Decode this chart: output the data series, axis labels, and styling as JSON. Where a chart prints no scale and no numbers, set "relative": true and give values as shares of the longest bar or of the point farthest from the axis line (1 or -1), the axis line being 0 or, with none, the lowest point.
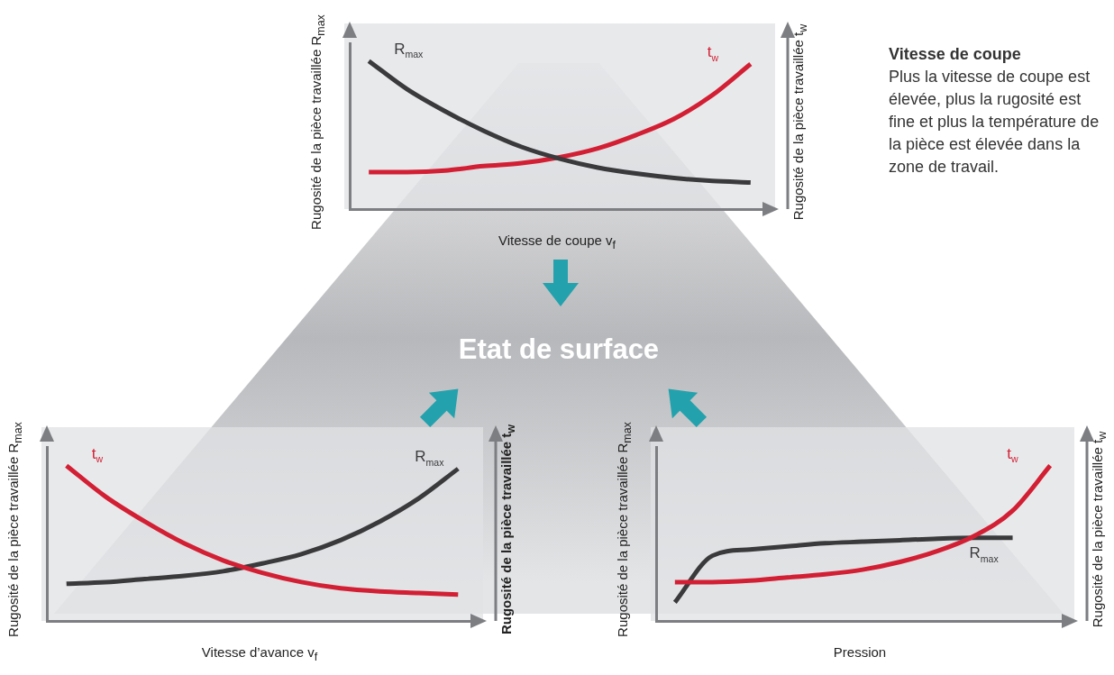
{
  "chart_data": [
    {
      "type": "line",
      "relative": true,
      "xlabel": "Vitesse de coupe v$_{f}$",
      "ylabel": "Rugosité de la pièce travaillée  R$_{max}$",
      "y2label": "Rugosité de la pièce travaillée  t$_{w}$",
      "tick_labels": false,
      "marker": "none",
      "categories": [
        null,
        null,
        null,
        null,
        null,
        null,
        null,
        null,
        null,
        null,
        null
      ],
      "series": [
        {
          "name": "R$_{max}$",
          "color": "#3a3a3c",
          "values": [
            1,
            0.81,
            0.66,
            0.53,
            0.42,
            0.34,
            0.28,
            0.24,
            0.21,
            0.19,
            0.18
          ]
        },
        {
          "name": "t$_{w}$",
          "color": "#d31f34",
          "values": [
            0.25,
            0.25,
            0.26,
            0.29,
            0.31,
            0.35,
            0.41,
            0.5,
            0.61,
            0.77,
            0.98
          ]
        }
      ]
    },
    {
      "type": "line",
      "relative": true,
      "xlabel": "Vitesse d’avance v$_{f}$",
      "ylabel": "Rugosité de la pièce travaillée  R$_{max}$",
      "y2label": "Rugosité de la pièce travaillée  t$_{w}$",
      "tick_labels": false,
      "marker": "none",
      "categories": [
        null,
        null,
        null,
        null,
        null,
        null,
        null,
        null,
        null,
        null,
        null
      ],
      "series": [
        {
          "name": "t$_{w}$",
          "color": "#d31f34",
          "values": [
            1,
            0.8,
            0.64,
            0.5,
            0.39,
            0.31,
            0.25,
            0.21,
            0.19,
            0.18,
            0.17
          ]
        },
        {
          "name": "R$_{max}$",
          "color": "#3a3a3c",
          "values": [
            0.24,
            0.25,
            0.27,
            0.29,
            0.32,
            0.37,
            0.43,
            0.52,
            0.64,
            0.79,
            0.98
          ]
        }
      ]
    },
    {
      "type": "line",
      "relative": true,
      "xlabel": "Pression",
      "ylabel": "Rugosité de la pièce travaillée  R$_{max}$",
      "y2label": "Rugosité de la pièce travaillée  t$_{w}$",
      "tick_labels": false,
      "marker": "none",
      "categories": [
        null,
        null,
        null,
        null,
        null,
        null,
        null,
        null,
        null,
        null,
        null
      ],
      "series": [
        {
          "name": "t$_{w}$",
          "color": "#d31f34",
          "values": [
            0.25,
            0.25,
            0.26,
            0.28,
            0.3,
            0.33,
            0.38,
            0.45,
            0.55,
            0.71,
            1
          ]
        },
        {
          "name": "R$_{max}$",
          "color": "#3a3a3c",
          "values": [
            0.12,
            0.42,
            0.46,
            0.48,
            0.5,
            0.51,
            0.52,
            0.53,
            0.535,
            0.535,
            null
          ]
        }
      ]
    },
    {
      "type": "other",
      "title": "Vitesse de coupe",
      "annotations": [
        "Plus la vitesse de coupe est élevée, plus la rugosité est fine et plus la température de la pièce est élevée dans la zone de travail."
      ]
    },
    {
      "type": "other",
      "title": "Etat de surface"
    }
  ]
}
